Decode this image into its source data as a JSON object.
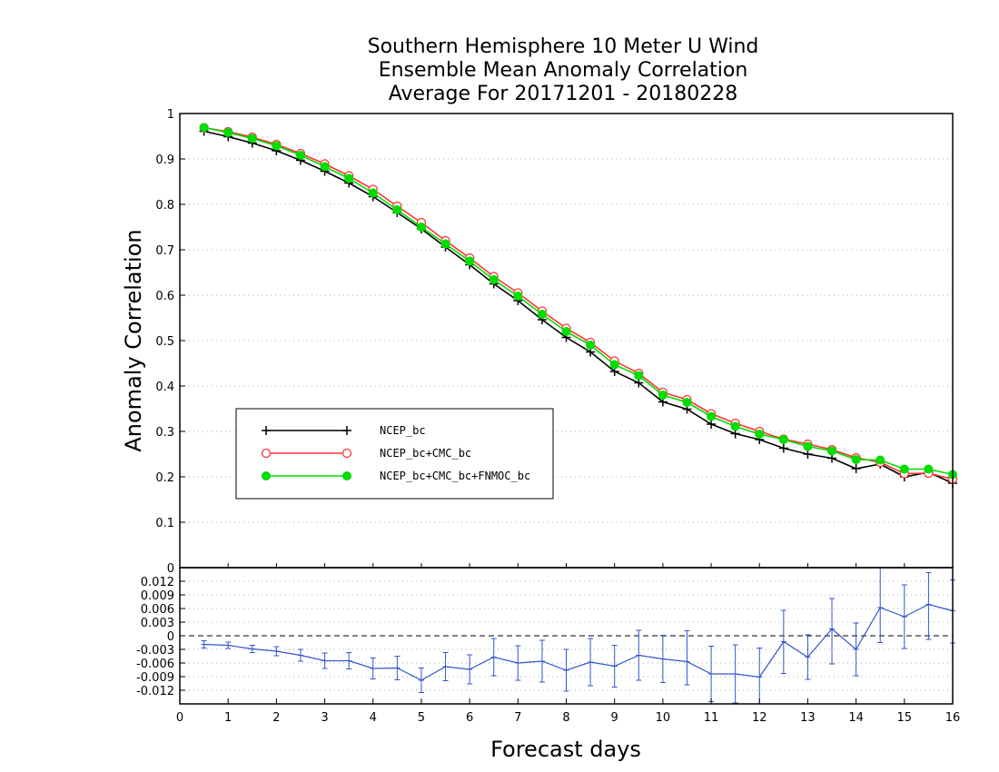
{
  "chart_data": [
    {
      "type": "line",
      "title": [
        "Southern Hemisphere 10 Meter U Wind",
        "Ensemble Mean Anomaly Correlation",
        "Average For 20171201 - 20180228"
      ],
      "xlabel": "Forecast days",
      "ylabel": "Anomaly Correlation",
      "xlim": [
        0,
        16
      ],
      "ylim": [
        0,
        1
      ],
      "yticks": [
        "0.1",
        "0.2",
        "0.3",
        "0.4",
        "0.5",
        "0.6",
        "0.7",
        "0.8",
        "0.9",
        "1"
      ],
      "grid": true,
      "legend_position": "left",
      "x": [
        0.5,
        1,
        1.5,
        2,
        2.5,
        3,
        3.5,
        4,
        4.5,
        5,
        5.5,
        6,
        6.5,
        7,
        7.5,
        8,
        8.5,
        9,
        9.5,
        10,
        10.5,
        11,
        11.5,
        12,
        12.5,
        13,
        13.5,
        14,
        14.5,
        15,
        15.5,
        16
      ],
      "series": [
        {
          "name": "NCEP_bc",
          "color": "#000000",
          "marker": "plus",
          "values": [
            0.961,
            0.949,
            0.935,
            0.918,
            0.897,
            0.873,
            0.847,
            0.817,
            0.782,
            0.746,
            0.706,
            0.667,
            0.625,
            0.588,
            0.546,
            0.507,
            0.475,
            0.432,
            0.407,
            0.365,
            0.349,
            0.316,
            0.295,
            0.282,
            0.263,
            0.25,
            0.241,
            0.218,
            0.228,
            0.2,
            0.21,
            0.186
          ]
        },
        {
          "name": "NCEP_bc+CMC_bc",
          "color": "#ff3333",
          "marker": "open-circle",
          "values": [
            0.969,
            0.96,
            0.948,
            0.932,
            0.912,
            0.889,
            0.863,
            0.833,
            0.796,
            0.76,
            0.72,
            0.682,
            0.641,
            0.605,
            0.565,
            0.527,
            0.496,
            0.455,
            0.428,
            0.386,
            0.37,
            0.339,
            0.318,
            0.3,
            0.283,
            0.272,
            0.26,
            0.242,
            0.232,
            0.207,
            0.208,
            0.195
          ]
        },
        {
          "name": "NCEP_bc+CMC_bc+FNMOC_bc",
          "color": "#00dd00",
          "marker": "filled-circle",
          "values": [
            0.969,
            0.958,
            0.945,
            0.929,
            0.908,
            0.883,
            0.857,
            0.825,
            0.788,
            0.75,
            0.713,
            0.675,
            0.634,
            0.598,
            0.558,
            0.52,
            0.49,
            0.447,
            0.423,
            0.38,
            0.364,
            0.333,
            0.311,
            0.294,
            0.282,
            0.267,
            0.257,
            0.238,
            0.237,
            0.217,
            0.217,
            0.205
          ]
        }
      ]
    },
    {
      "type": "line",
      "xlabel": "Forecast days",
      "xlim": [
        0,
        16
      ],
      "ylim": [
        -0.015,
        0.015
      ],
      "xticks": [
        "0",
        "1",
        "2",
        "3",
        "4",
        "5",
        "6",
        "7",
        "8",
        "9",
        "10",
        "11",
        "12",
        "13",
        "14",
        "15",
        "16"
      ],
      "yticks": [
        "-0.012",
        "-0.009",
        "-0.006",
        "-0.003",
        "0",
        "0.003",
        "0.006",
        "0.009",
        "0.012"
      ],
      "grid": true,
      "reference_line": 0,
      "x": [
        0.5,
        1,
        1.5,
        2,
        2.5,
        3,
        3.5,
        4,
        4.5,
        5,
        5.5,
        6,
        6.5,
        7,
        7.5,
        8,
        8.5,
        9,
        9.5,
        10,
        10.5,
        11,
        11.5,
        12,
        12.5,
        13,
        13.5,
        14,
        14.5,
        15,
        15.5,
        16
      ],
      "series": [
        {
          "color": "#3355cc",
          "marker": "errorbar",
          "values": [
            -0.0019,
            -0.0021,
            -0.0029,
            -0.0034,
            -0.0043,
            -0.0055,
            -0.0055,
            -0.0072,
            -0.0071,
            -0.0098,
            -0.0068,
            -0.0074,
            -0.0047,
            -0.006,
            -0.0056,
            -0.0076,
            -0.0058,
            -0.0067,
            -0.0043,
            -0.0051,
            -0.0057,
            -0.0084,
            -0.0084,
            -0.0091,
            -0.0013,
            -0.0047,
            0.0015,
            -0.003,
            0.0062,
            0.0042,
            0.0069,
            0.0055
          ],
          "error_low": [
            -0.0027,
            -0.0028,
            -0.0037,
            -0.0044,
            -0.0056,
            -0.0072,
            -0.0073,
            -0.0095,
            -0.0097,
            -0.0125,
            -0.0099,
            -0.0106,
            -0.0088,
            -0.0098,
            -0.0102,
            -0.0122,
            -0.011,
            -0.0113,
            -0.0098,
            -0.0103,
            -0.0108,
            -0.0145,
            -0.0148,
            -0.0155,
            -0.0083,
            -0.0096,
            -0.0062,
            -0.0088,
            -0.0015,
            -0.0028,
            -0.0008,
            -0.0016
          ],
          "error_high": [
            -0.0011,
            -0.0014,
            -0.0021,
            -0.0024,
            -0.003,
            -0.0038,
            -0.0037,
            -0.0049,
            -0.0045,
            -0.0071,
            -0.0037,
            -0.0042,
            -0.0006,
            -0.0022,
            -0.001,
            -0.003,
            -0.0006,
            -0.0021,
            0.0012,
            0.0001,
            0.0011,
            -0.0023,
            -0.002,
            -0.0027,
            0.0056,
            0.0002,
            0.0082,
            0.0028,
            0.015,
            0.0112,
            0.0139,
            0.0123
          ]
        }
      ]
    }
  ]
}
